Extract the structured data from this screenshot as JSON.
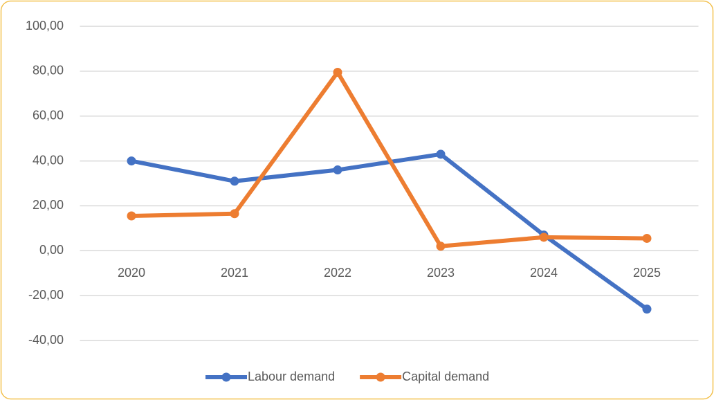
{
  "chart_data": {
    "type": "line",
    "categories": [
      "2020",
      "2021",
      "2022",
      "2023",
      "2024",
      "2025"
    ],
    "series": [
      {
        "name": "Labour demand",
        "color": "#4472c4",
        "values": [
          40,
          31,
          36,
          43,
          7,
          -26
        ]
      },
      {
        "name": "Capital demand",
        "color": "#ed7d31",
        "values": [
          15.5,
          16.5,
          79.5,
          2,
          6,
          5.5
        ]
      }
    ],
    "ylim": [
      -40,
      100
    ],
    "yticks": [
      {
        "value": -40,
        "label": "-40,00"
      },
      {
        "value": -20,
        "label": "-20,00"
      },
      {
        "value": 0,
        "label": "0,00"
      },
      {
        "value": 20,
        "label": "20,00"
      },
      {
        "value": 40,
        "label": "40,00"
      },
      {
        "value": 60,
        "label": "60,00"
      },
      {
        "value": 80,
        "label": "80,00"
      },
      {
        "value": 100,
        "label": "100,00"
      }
    ],
    "grid": true,
    "legend": "bottom"
  }
}
